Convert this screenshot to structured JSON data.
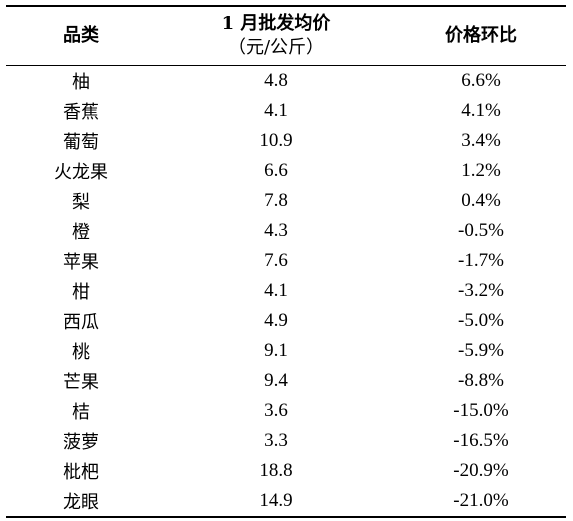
{
  "table": {
    "headers": {
      "category": "品类",
      "price_line1": "1 月批发均价",
      "price_line2": "（元/公斤）",
      "change": "价格环比"
    },
    "rows": [
      {
        "category": "柚",
        "price": "4.8",
        "change": "6.6%"
      },
      {
        "category": "香蕉",
        "price": "4.1",
        "change": "4.1%"
      },
      {
        "category": "葡萄",
        "price": "10.9",
        "change": "3.4%"
      },
      {
        "category": "火龙果",
        "price": "6.6",
        "change": "1.2%"
      },
      {
        "category": "梨",
        "price": "7.8",
        "change": "0.4%"
      },
      {
        "category": "橙",
        "price": "4.3",
        "change": "-0.5%"
      },
      {
        "category": "苹果",
        "price": "7.6",
        "change": "-1.7%"
      },
      {
        "category": "柑",
        "price": "4.1",
        "change": "-3.2%"
      },
      {
        "category": "西瓜",
        "price": "4.9",
        "change": "-5.0%"
      },
      {
        "category": "桃",
        "price": "9.1",
        "change": "-5.9%"
      },
      {
        "category": "芒果",
        "price": "9.4",
        "change": "-8.8%"
      },
      {
        "category": "桔",
        "price": "3.6",
        "change": "-15.0%"
      },
      {
        "category": "菠萝",
        "price": "3.3",
        "change": "-16.5%"
      },
      {
        "category": "枇杷",
        "price": "18.8",
        "change": "-20.9%"
      },
      {
        "category": "龙眼",
        "price": "14.9",
        "change": "-21.0%"
      }
    ]
  }
}
